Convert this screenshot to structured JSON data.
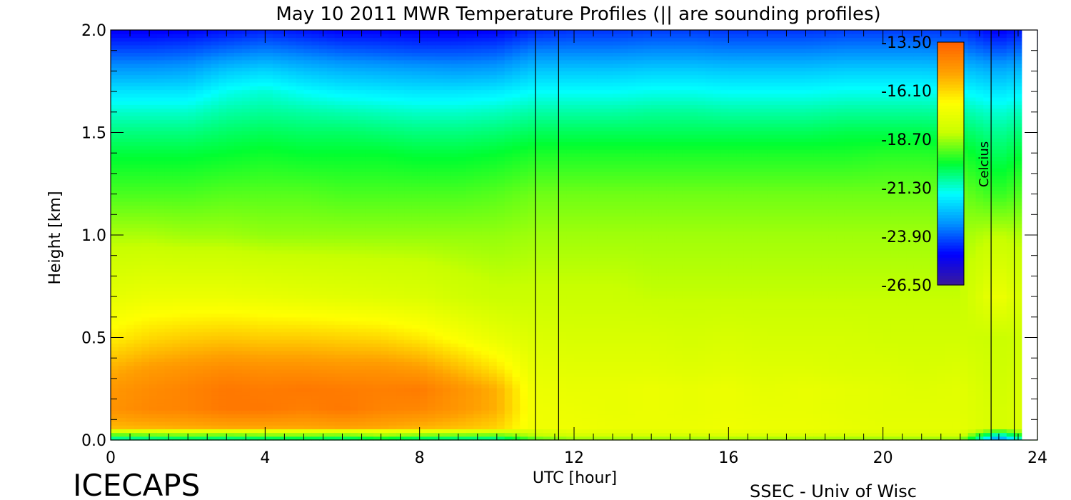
{
  "footer": {
    "brand": "ICECAPS",
    "credit": "SSEC - Univ of Wisc"
  },
  "chart_data": {
    "type": "heatmap",
    "title": "May 10 2011 MWR Temperature Profiles (|| are sounding profiles)",
    "xlabel": "UTC [hour]",
    "ylabel": "Height [km]",
    "xlim": [
      0,
      24
    ],
    "ylim": [
      0.0,
      2.0
    ],
    "x_ticks": [
      "0",
      "4",
      "8",
      "12",
      "16",
      "20",
      "24"
    ],
    "y_ticks": [
      "0.0",
      "0.5",
      "1.0",
      "1.5",
      "2.0"
    ],
    "colorbar": {
      "label": "Celcius",
      "ticks": [
        "-13.50",
        "-16.10",
        "-18.70",
        "-21.30",
        "-23.90",
        "-26.50"
      ],
      "range": [
        -26.5,
        -13.5
      ]
    },
    "sounding_times_utc": [
      11.0,
      11.6,
      22.8,
      23.4
    ],
    "surface_layer": {
      "x": [
        0,
        1,
        2,
        3,
        4,
        5,
        6,
        7,
        8,
        9,
        10,
        11,
        12,
        13,
        14,
        15,
        16,
        17,
        18,
        19,
        20,
        21,
        22,
        23,
        24
      ],
      "height_km": [
        0.0,
        0.03,
        0.06
      ],
      "temp_c": [
        [
          -21.5,
          -21.3,
          -21.0,
          -21.2,
          -21.0,
          -20.8,
          -21.0,
          -20.5,
          -21.0,
          -21.2,
          -21.3,
          -19.5,
          -19.0,
          -19.0,
          -19.0,
          -19.0,
          -19.0,
          -19.0,
          -19.0,
          -19.0,
          -19.0,
          -19.0,
          -19.0,
          -24.0,
          -19.5
        ],
        [
          -19.0,
          -18.8,
          -18.7,
          -18.8,
          -18.6,
          -18.6,
          -18.7,
          -18.4,
          -18.6,
          -18.7,
          -18.8,
          -18.3,
          -17.8,
          -17.8,
          -17.8,
          -17.8,
          -17.6,
          -17.7,
          -17.7,
          -17.8,
          -17.8,
          -17.8,
          -17.8,
          -21.0,
          -18.0
        ],
        [
          -16.8,
          -16.6,
          -16.4,
          -16.4,
          -16.3,
          -16.3,
          -16.3,
          -16.2,
          -16.3,
          -16.5,
          -16.8,
          -17.4,
          -17.2,
          -17.3,
          -17.3,
          -17.2,
          -17.2,
          -17.2,
          -17.2,
          -17.3,
          -17.4,
          -17.4,
          -17.4,
          -18.0,
          -17.6
        ]
      ]
    },
    "profile_height_km": [
      0.06,
      0.15,
      0.25,
      0.35,
      0.5,
      0.7,
      1.0,
      1.2,
      1.4,
      1.5,
      1.6,
      1.7,
      1.8,
      1.9,
      2.0
    ],
    "profile_time_utc": [
      0,
      1,
      2,
      3,
      4,
      5,
      6,
      7,
      8,
      9,
      10,
      11,
      12,
      13,
      14,
      15,
      16,
      17,
      18,
      19,
      20,
      21,
      22,
      23,
      24
    ],
    "temp_c": [
      [
        -15.6,
        -15.5,
        -15.4,
        -15.3,
        -15.3,
        -15.3,
        -15.2,
        -15.3,
        -15.5,
        -15.7,
        -16.0,
        -17.2,
        -17.2,
        -17.3,
        -17.3,
        -17.3,
        -17.2,
        -17.3,
        -17.3,
        -17.4,
        -17.5,
        -17.5,
        -17.5,
        -18.0,
        -17.7
      ],
      [
        -14.8,
        -14.5,
        -14.4,
        -14.1,
        -14.1,
        -14.3,
        -14.1,
        -14.4,
        -14.5,
        -14.9,
        -15.4,
        -17.2,
        -17.3,
        -17.4,
        -17.3,
        -17.4,
        -17.3,
        -17.4,
        -17.4,
        -17.5,
        -17.6,
        -17.6,
        -17.6,
        -18.0,
        -17.7
      ],
      [
        -14.9,
        -14.6,
        -14.4,
        -14.1,
        -14.2,
        -14.1,
        -14.2,
        -14.3,
        -14.2,
        -14.8,
        -15.4,
        -17.3,
        -17.4,
        -17.4,
        -17.3,
        -17.4,
        -17.3,
        -17.5,
        -17.4,
        -17.5,
        -17.6,
        -17.7,
        -17.6,
        -18.1,
        -17.7
      ],
      [
        -15.4,
        -15.0,
        -14.8,
        -14.6,
        -14.7,
        -14.7,
        -14.8,
        -14.8,
        -15.0,
        -15.6,
        -16.3,
        -17.5,
        -17.6,
        -17.6,
        -17.6,
        -17.7,
        -17.6,
        -17.7,
        -17.7,
        -17.8,
        -17.8,
        -17.9,
        -17.8,
        -18.2,
        -17.9
      ],
      [
        -16.5,
        -16.1,
        -15.9,
        -15.8,
        -15.9,
        -15.9,
        -16.0,
        -16.1,
        -16.4,
        -16.9,
        -17.4,
        -17.8,
        -17.9,
        -17.9,
        -17.9,
        -18.0,
        -17.9,
        -18.0,
        -18.0,
        -18.0,
        -18.1,
        -18.1,
        -18.1,
        -18.3,
        -18.1
      ],
      [
        -17.5,
        -17.3,
        -17.3,
        -17.3,
        -17.4,
        -17.5,
        -17.6,
        -17.7,
        -17.8,
        -18.1,
        -18.3,
        -18.3,
        -18.3,
        -18.3,
        -18.4,
        -18.4,
        -18.4,
        -18.4,
        -18.4,
        -18.4,
        -18.4,
        -18.4,
        -18.4,
        -17.2,
        -18.4
      ],
      [
        -18.6,
        -18.6,
        -18.7,
        -18.7,
        -18.8,
        -18.8,
        -18.8,
        -18.8,
        -18.8,
        -18.8,
        -18.8,
        -18.7,
        -18.7,
        -18.7,
        -18.7,
        -18.7,
        -18.7,
        -18.7,
        -18.7,
        -18.7,
        -18.7,
        -18.7,
        -18.7,
        -18.4,
        -18.7
      ],
      [
        -19.4,
        -19.4,
        -19.4,
        -19.3,
        -19.3,
        -19.3,
        -19.4,
        -19.4,
        -19.4,
        -19.4,
        -19.3,
        -19.1,
        -19.1,
        -19.1,
        -19.1,
        -19.1,
        -19.1,
        -19.1,
        -19.1,
        -19.1,
        -19.1,
        -19.1,
        -19.1,
        -19.6,
        -19.1
      ],
      [
        -20.1,
        -20.1,
        -20.1,
        -20.0,
        -19.9,
        -20.0,
        -20.0,
        -20.0,
        -20.1,
        -20.1,
        -20.0,
        -19.8,
        -19.8,
        -19.8,
        -19.8,
        -19.8,
        -19.8,
        -19.8,
        -19.8,
        -19.8,
        -19.7,
        -19.7,
        -19.8,
        -20.4,
        -19.8
      ],
      [
        -20.6,
        -20.6,
        -20.6,
        -20.4,
        -20.3,
        -20.4,
        -20.4,
        -20.5,
        -20.6,
        -20.6,
        -20.5,
        -20.3,
        -20.3,
        -20.3,
        -20.3,
        -20.3,
        -20.3,
        -20.3,
        -20.3,
        -20.2,
        -20.2,
        -20.2,
        -20.3,
        -20.8,
        -20.3
      ],
      [
        -21.2,
        -21.2,
        -21.2,
        -20.9,
        -20.8,
        -20.9,
        -21.0,
        -21.1,
        -21.2,
        -21.2,
        -21.1,
        -20.9,
        -20.9,
        -20.9,
        -20.8,
        -20.8,
        -20.9,
        -20.9,
        -20.9,
        -20.8,
        -20.8,
        -20.8,
        -20.9,
        -21.3,
        -20.9
      ],
      [
        -22.0,
        -22.0,
        -22.0,
        -21.5,
        -21.3,
        -21.6,
        -21.8,
        -21.9,
        -22.0,
        -22.0,
        -21.9,
        -21.6,
        -21.6,
        -21.6,
        -21.5,
        -21.5,
        -21.6,
        -21.6,
        -21.6,
        -21.5,
        -21.5,
        -21.5,
        -21.6,
        -22.0,
        -21.6
      ],
      [
        -23.0,
        -23.0,
        -22.9,
        -22.4,
        -22.2,
        -22.5,
        -22.7,
        -22.8,
        -22.9,
        -23.0,
        -22.9,
        -22.4,
        -22.4,
        -22.4,
        -22.3,
        -22.3,
        -22.4,
        -22.4,
        -22.4,
        -22.3,
        -22.3,
        -22.3,
        -22.4,
        -22.8,
        -22.4
      ],
      [
        -24.0,
        -24.0,
        -23.9,
        -23.6,
        -23.4,
        -23.6,
        -23.8,
        -23.9,
        -24.0,
        -24.0,
        -23.9,
        -23.4,
        -23.4,
        -23.4,
        -23.3,
        -23.3,
        -23.4,
        -23.4,
        -23.4,
        -23.3,
        -23.3,
        -23.3,
        -23.4,
        -23.9,
        -23.4
      ],
      [
        -25.0,
        -25.0,
        -24.9,
        -24.7,
        -24.5,
        -24.7,
        -24.9,
        -24.9,
        -25.0,
        -25.0,
        -24.9,
        -24.5,
        -24.3,
        -24.3,
        -24.2,
        -24.2,
        -24.3,
        -24.3,
        -24.3,
        -24.2,
        -24.2,
        -24.2,
        -24.3,
        -25.0,
        -24.3
      ]
    ],
    "colors": {
      "background": "#ffffff",
      "axis": "#000000",
      "colormap": [
        "#3a1a9a",
        "#0000ff",
        "#0090ff",
        "#00ffff",
        "#00ff30",
        "#c8ff00",
        "#ffff00",
        "#ffa000",
        "#ff6000"
      ]
    }
  }
}
